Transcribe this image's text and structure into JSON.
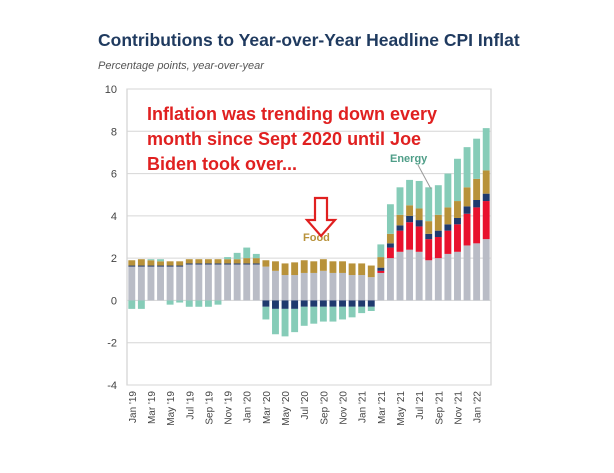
{
  "header": {
    "title": "Contributions to Year-over-Year Headline CPI Inflat",
    "subtitle": "Percentage points, year-over-year"
  },
  "annotation": {
    "lines": [
      "Inflation was trending down every",
      "month since Sept 2020 until Joe",
      "Biden took over..."
    ],
    "color": "#e02020"
  },
  "chart_data": {
    "type": "bar",
    "stacked": true,
    "ylim": [
      -4,
      10
    ],
    "yticks": [
      -4,
      -2,
      0,
      2,
      4,
      6,
      8,
      10
    ],
    "grid": true,
    "categories": [
      "Jan '19",
      "Feb '19",
      "Mar '19",
      "Apr '19",
      "May '19",
      "Jun '19",
      "Jul '19",
      "Aug '19",
      "Sep '19",
      "Oct '19",
      "Nov '19",
      "Dec '19",
      "Jan '20",
      "Feb '20",
      "Mar '20",
      "Apr '20",
      "May '20",
      "Jun '20",
      "Jul '20",
      "Aug '20",
      "Sep '20",
      "Oct '20",
      "Nov '20",
      "Dec '20",
      "Jan '21",
      "Feb '21",
      "Mar '21",
      "Apr '21",
      "May '21",
      "Jun '21",
      "Jul '21",
      "Aug '21",
      "Sep '21",
      "Oct '21",
      "Nov '21",
      "Dec '21",
      "Jan '22",
      "Feb '22"
    ],
    "xtick_labels": [
      "Jan '19",
      "Mar '19",
      "May '19",
      "Jul '19",
      "Sep '19",
      "Nov '19",
      "Jan '20",
      "Mar '20",
      "May '20",
      "Jul '20",
      "Sep '20",
      "Nov '20",
      "Jan '21",
      "Mar '21",
      "May '21",
      "Jul '21",
      "Sep '21",
      "Nov '21",
      "Jan '22"
    ],
    "series": [
      {
        "name": "",
        "color": "#b9bcc6",
        "values": [
          1.6,
          1.6,
          1.6,
          1.6,
          1.6,
          1.6,
          1.7,
          1.7,
          1.7,
          1.7,
          1.7,
          1.7,
          1.7,
          1.7,
          1.6,
          1.4,
          1.2,
          1.2,
          1.3,
          1.3,
          1.4,
          1.3,
          1.3,
          1.2,
          1.2,
          1.1,
          1.3,
          2.0,
          2.3,
          2.4,
          2.3,
          1.9,
          2.0,
          2.2,
          2.3,
          2.6,
          2.7,
          2.9
        ]
      },
      {
        "name": "",
        "color": "#e8112d",
        "values": [
          0.0,
          0.0,
          0.0,
          0.0,
          0.0,
          0.0,
          0.0,
          0.0,
          0.0,
          0.0,
          0.0,
          0.0,
          0.0,
          0.0,
          0.0,
          0.0,
          0.0,
          0.0,
          0.0,
          0.0,
          0.0,
          0.0,
          0.0,
          0.0,
          0.0,
          0.0,
          0.1,
          0.5,
          1.0,
          1.3,
          1.2,
          1.0,
          1.0,
          1.1,
          1.3,
          1.5,
          1.7,
          1.8
        ]
      },
      {
        "name": "",
        "color": "#1f3a6e",
        "values": [
          0.05,
          0.05,
          0.05,
          0.05,
          0.05,
          0.05,
          0.05,
          0.05,
          0.05,
          0.05,
          0.05,
          0.05,
          0.05,
          0.05,
          -0.3,
          -0.4,
          -0.4,
          -0.4,
          -0.3,
          -0.3,
          -0.3,
          -0.3,
          -0.3,
          -0.3,
          -0.3,
          -0.3,
          0.15,
          0.2,
          0.25,
          0.3,
          0.3,
          0.25,
          0.3,
          0.3,
          0.3,
          0.35,
          0.35,
          0.35
        ]
      },
      {
        "name": "Food",
        "color": "#b8923a",
        "values": [
          0.25,
          0.3,
          0.25,
          0.2,
          0.2,
          0.2,
          0.2,
          0.2,
          0.2,
          0.2,
          0.2,
          0.2,
          0.25,
          0.25,
          0.3,
          0.45,
          0.55,
          0.6,
          0.6,
          0.55,
          0.55,
          0.55,
          0.55,
          0.55,
          0.55,
          0.55,
          0.5,
          0.45,
          0.5,
          0.5,
          0.55,
          0.6,
          0.75,
          0.8,
          0.8,
          0.9,
          1.0,
          1.1
        ]
      },
      {
        "name": "Energy",
        "color": "#86ccb8",
        "values": [
          -0.4,
          -0.4,
          0.05,
          0.1,
          -0.2,
          -0.1,
          -0.3,
          -0.3,
          -0.3,
          -0.2,
          0.1,
          0.3,
          0.5,
          0.2,
          -0.6,
          -1.2,
          -1.3,
          -1.1,
          -0.9,
          -0.8,
          -0.7,
          -0.7,
          -0.6,
          -0.5,
          -0.3,
          -0.2,
          0.6,
          1.4,
          1.3,
          1.2,
          1.3,
          1.6,
          1.4,
          1.6,
          2.0,
          1.9,
          1.9,
          2.0
        ]
      }
    ]
  }
}
